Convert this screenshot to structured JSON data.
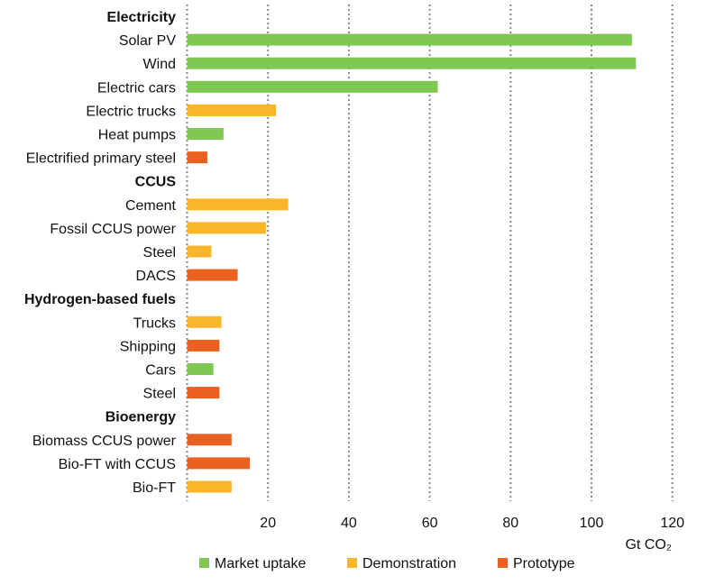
{
  "chart_data": {
    "type": "bar",
    "orientation": "horizontal",
    "xlabel": "Gt CO₂",
    "xlim": [
      0,
      120
    ],
    "xticks": [
      20,
      40,
      60,
      80,
      100,
      120
    ],
    "grid": true,
    "legend_position": "bottom",
    "legend": [
      {
        "name": "Market uptake",
        "color": "#7FC852"
      },
      {
        "name": "Demonstration",
        "color": "#FBB52B"
      },
      {
        "name": "Prototype",
        "color": "#E96120"
      }
    ],
    "groups": [
      {
        "title": "Electricity",
        "items": [
          {
            "label": "Solar PV",
            "value": 110,
            "stage": "Market uptake"
          },
          {
            "label": "Wind",
            "value": 111,
            "stage": "Market uptake"
          },
          {
            "label": "Electric cars",
            "value": 62,
            "stage": "Market uptake"
          },
          {
            "label": "Electric trucks",
            "value": 22,
            "stage": "Demonstration"
          },
          {
            "label": "Heat pumps",
            "value": 9,
            "stage": "Market uptake"
          },
          {
            "label": "Electrified primary steel",
            "value": 5,
            "stage": "Prototype"
          }
        ]
      },
      {
        "title": "CCUS",
        "items": [
          {
            "label": "Cement",
            "value": 25,
            "stage": "Demonstration"
          },
          {
            "label": "Fossil CCUS power",
            "value": 19.5,
            "stage": "Demonstration"
          },
          {
            "label": "Steel",
            "value": 6,
            "stage": "Demonstration"
          },
          {
            "label": "DACS",
            "value": 12.5,
            "stage": "Prototype"
          }
        ]
      },
      {
        "title": "Hydrogen-based fuels",
        "items": [
          {
            "label": "Trucks",
            "value": 8.5,
            "stage": "Demonstration"
          },
          {
            "label": "Shipping",
            "value": 8,
            "stage": "Prototype"
          },
          {
            "label": "Cars",
            "value": 6.5,
            "stage": "Market uptake"
          },
          {
            "label": "Steel",
            "value": 8,
            "stage": "Prototype"
          }
        ]
      },
      {
        "title": "Bioenergy",
        "items": [
          {
            "label": "Biomass CCUS power",
            "value": 11,
            "stage": "Prototype"
          },
          {
            "label": "Bio-FT with CCUS",
            "value": 15.5,
            "stage": "Prototype"
          },
          {
            "label": "Bio-FT",
            "value": 11,
            "stage": "Demonstration"
          }
        ]
      }
    ]
  }
}
